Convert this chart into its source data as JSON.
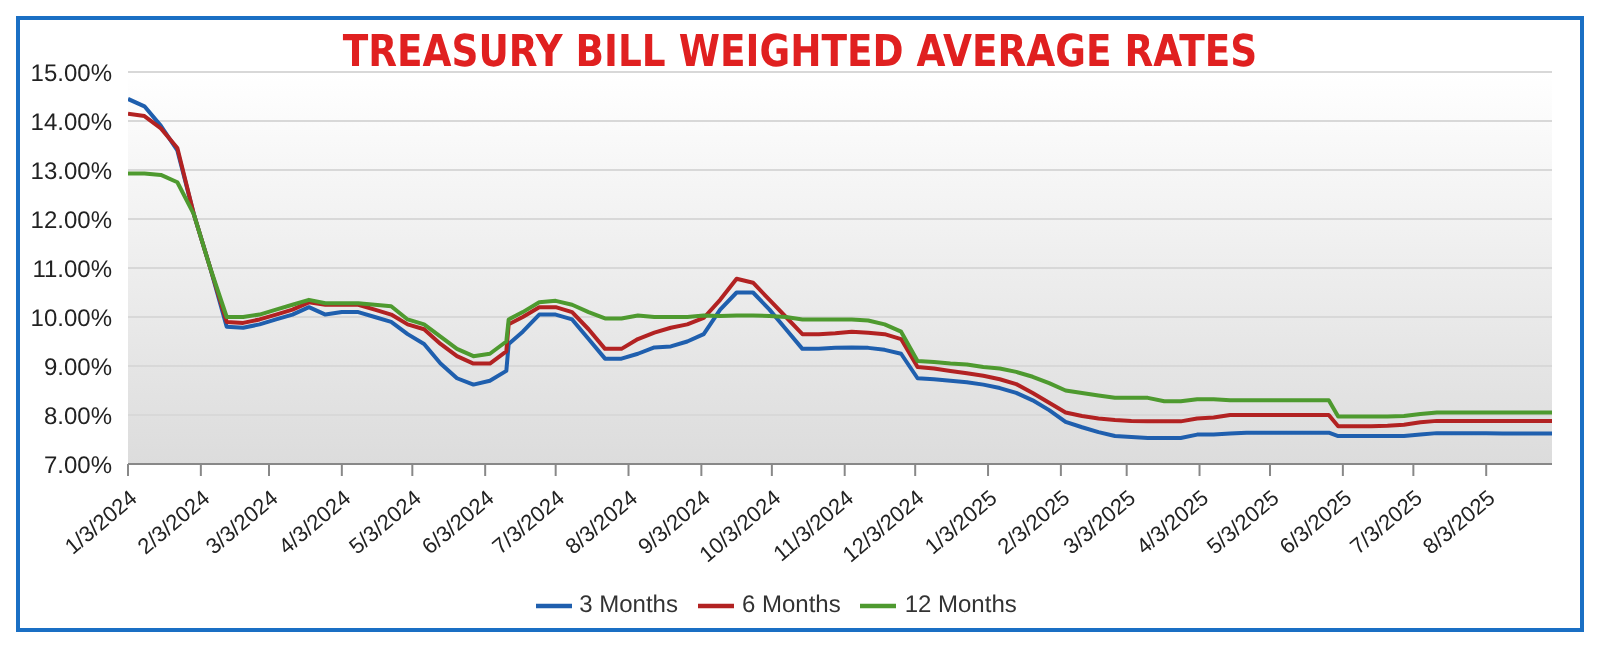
{
  "chart_data": {
    "type": "line",
    "title": "TREASURY BILL WEIGHTED AVERAGE RATES",
    "x": [
      "2024-01-03",
      "2024-01-10",
      "2024-01-17",
      "2024-01-24",
      "2024-01-31",
      "2024-02-07",
      "2024-02-14",
      "2024-02-21",
      "2024-02-28",
      "2024-03-06",
      "2024-03-13",
      "2024-03-20",
      "2024-03-27",
      "2024-04-03",
      "2024-04-10",
      "2024-04-17",
      "2024-04-24",
      "2024-05-01",
      "2024-05-08",
      "2024-05-15",
      "2024-05-22",
      "2024-05-29",
      "2024-06-05",
      "2024-06-12",
      "2024-06-13",
      "2024-06-19",
      "2024-06-26",
      "2024-07-03",
      "2024-07-10",
      "2024-07-17",
      "2024-07-24",
      "2024-07-31",
      "2024-08-07",
      "2024-08-14",
      "2024-08-21",
      "2024-08-28",
      "2024-09-04",
      "2024-09-11",
      "2024-09-18",
      "2024-09-25",
      "2024-10-02",
      "2024-10-09",
      "2024-10-16",
      "2024-10-23",
      "2024-10-30",
      "2024-11-06",
      "2024-11-13",
      "2024-11-20",
      "2024-11-27",
      "2024-12-04",
      "2024-12-11",
      "2024-12-18",
      "2024-12-25",
      "2025-01-01",
      "2025-01-08",
      "2025-01-15",
      "2025-01-22",
      "2025-01-29",
      "2025-02-05",
      "2025-02-12",
      "2025-02-19",
      "2025-02-26",
      "2025-03-05",
      "2025-03-12",
      "2025-03-19",
      "2025-03-26",
      "2025-04-02",
      "2025-04-09",
      "2025-04-16",
      "2025-04-23",
      "2025-04-30",
      "2025-05-07",
      "2025-05-14",
      "2025-05-21",
      "2025-05-28",
      "2025-06-01",
      "2025-06-08",
      "2025-06-15",
      "2025-06-22",
      "2025-06-29",
      "2025-07-06",
      "2025-07-13",
      "2025-07-20",
      "2025-07-27",
      "2025-08-03",
      "2025-08-10",
      "2025-08-17",
      "2025-08-24",
      "2025-08-31"
    ],
    "series": [
      {
        "name": "3 Months",
        "color": "#1f5fae",
        "values": [
          14.45,
          14.3,
          13.9,
          13.4,
          12.1,
          11.0,
          9.8,
          9.78,
          9.85,
          9.95,
          10.05,
          10.2,
          10.05,
          10.1,
          10.1,
          10.0,
          9.9,
          9.65,
          9.45,
          9.05,
          8.75,
          8.62,
          8.7,
          8.9,
          9.45,
          9.7,
          10.05,
          10.05,
          9.95,
          9.55,
          9.15,
          9.15,
          9.25,
          9.38,
          9.4,
          9.5,
          9.65,
          10.15,
          10.5,
          10.5,
          10.15,
          9.75,
          9.35,
          9.35,
          9.37,
          9.38,
          9.37,
          9.33,
          9.25,
          8.75,
          8.73,
          8.7,
          8.67,
          8.62,
          8.55,
          8.45,
          8.3,
          8.1,
          7.86,
          7.75,
          7.65,
          7.57,
          7.55,
          7.53,
          7.53,
          7.53,
          7.6,
          7.6,
          7.62,
          7.64,
          7.64,
          7.64,
          7.64,
          7.64,
          7.64,
          7.57,
          7.57,
          7.57,
          7.57,
          7.57,
          7.6,
          7.63,
          7.63,
          7.63,
          7.63,
          7.62,
          7.62,
          7.62,
          7.62
        ]
      },
      {
        "name": "6 Months",
        "color": "#b22222",
        "values": [
          14.15,
          14.1,
          13.85,
          13.45,
          12.1,
          11.0,
          9.9,
          9.88,
          9.95,
          10.05,
          10.15,
          10.3,
          10.25,
          10.25,
          10.25,
          10.15,
          10.05,
          9.85,
          9.75,
          9.45,
          9.2,
          9.05,
          9.05,
          9.3,
          9.85,
          10.0,
          10.2,
          10.2,
          10.1,
          9.75,
          9.35,
          9.35,
          9.55,
          9.68,
          9.78,
          9.85,
          9.98,
          10.35,
          10.78,
          10.7,
          10.35,
          10.0,
          9.65,
          9.65,
          9.67,
          9.7,
          9.68,
          9.65,
          9.55,
          8.98,
          8.95,
          8.9,
          8.85,
          8.8,
          8.73,
          8.63,
          8.45,
          8.25,
          8.05,
          7.98,
          7.93,
          7.9,
          7.88,
          7.87,
          7.87,
          7.87,
          7.93,
          7.95,
          8.0,
          8.0,
          8.0,
          8.0,
          8.0,
          8.0,
          8.0,
          7.77,
          7.77,
          7.77,
          7.78,
          7.8,
          7.85,
          7.88,
          7.88,
          7.88,
          7.88,
          7.88,
          7.88,
          7.88,
          7.88
        ]
      },
      {
        "name": "12 Months",
        "color": "#4e9a2f",
        "values": [
          12.93,
          12.93,
          12.9,
          12.75,
          12.1,
          11.0,
          10.0,
          10.0,
          10.05,
          10.15,
          10.25,
          10.35,
          10.28,
          10.28,
          10.28,
          10.25,
          10.22,
          9.95,
          9.85,
          9.6,
          9.35,
          9.2,
          9.25,
          9.5,
          9.95,
          10.1,
          10.3,
          10.33,
          10.25,
          10.1,
          9.97,
          9.97,
          10.03,
          10.0,
          10.0,
          10.0,
          10.03,
          10.02,
          10.03,
          10.03,
          10.02,
          10.0,
          9.95,
          9.95,
          9.95,
          9.95,
          9.93,
          9.85,
          9.7,
          9.1,
          9.08,
          9.05,
          9.03,
          8.98,
          8.95,
          8.88,
          8.78,
          8.65,
          8.5,
          8.45,
          8.4,
          8.35,
          8.35,
          8.35,
          8.28,
          8.28,
          8.32,
          8.32,
          8.3,
          8.3,
          8.3,
          8.3,
          8.3,
          8.3,
          8.3,
          7.97,
          7.97,
          7.97,
          7.97,
          7.98,
          8.02,
          8.05,
          8.05,
          8.05,
          8.05,
          8.05,
          8.05,
          8.05,
          8.05
        ]
      }
    ],
    "xlim": [
      "2024-01-03",
      "2025-08-31"
    ],
    "xticks": [
      {
        "value": "2024-01-03",
        "label": "1/3/2024"
      },
      {
        "value": "2024-02-03",
        "label": "2/3/2024"
      },
      {
        "value": "2024-03-03",
        "label": "3/3/2024"
      },
      {
        "value": "2024-04-03",
        "label": "4/3/2024"
      },
      {
        "value": "2024-05-03",
        "label": "5/3/2024"
      },
      {
        "value": "2024-06-03",
        "label": "6/3/2024"
      },
      {
        "value": "2024-07-03",
        "label": "7/3/2024"
      },
      {
        "value": "2024-08-03",
        "label": "8/3/2024"
      },
      {
        "value": "2024-09-03",
        "label": "9/3/2024"
      },
      {
        "value": "2024-10-03",
        "label": "10/3/2024"
      },
      {
        "value": "2024-11-03",
        "label": "11/3/2024"
      },
      {
        "value": "2024-12-03",
        "label": "12/3/2024"
      },
      {
        "value": "2025-01-03",
        "label": "1/3/2025"
      },
      {
        "value": "2025-02-03",
        "label": "2/3/2025"
      },
      {
        "value": "2025-03-03",
        "label": "3/3/2025"
      },
      {
        "value": "2025-04-03",
        "label": "4/3/2025"
      },
      {
        "value": "2025-05-03",
        "label": "5/3/2025"
      },
      {
        "value": "2025-06-03",
        "label": "6/3/2025"
      },
      {
        "value": "2025-07-03",
        "label": "7/3/2025"
      },
      {
        "value": "2025-08-03",
        "label": "8/3/2025"
      }
    ],
    "ylim": [
      7,
      15
    ],
    "yticks": [
      {
        "value": 7,
        "label": "7.00%"
      },
      {
        "value": 8,
        "label": "8.00%"
      },
      {
        "value": 9,
        "label": "9.00%"
      },
      {
        "value": 10,
        "label": "10.00%"
      },
      {
        "value": 11,
        "label": "11.00%"
      },
      {
        "value": 12,
        "label": "12.00%"
      },
      {
        "value": 13,
        "label": "13.00%"
      },
      {
        "value": 14,
        "label": "14.00%"
      },
      {
        "value": 15,
        "label": "15.00%"
      }
    ],
    "grid": "y",
    "legend": "bottom",
    "marker": "none",
    "line_style": "solid"
  }
}
